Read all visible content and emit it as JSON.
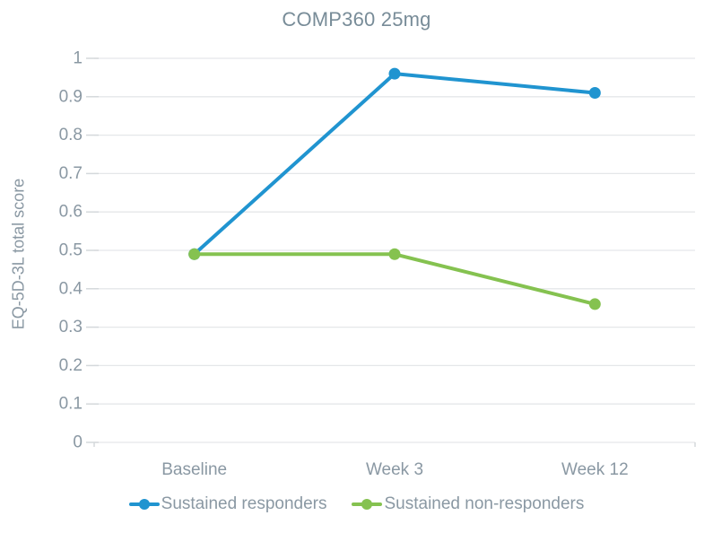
{
  "chart_data": {
    "type": "line",
    "title": "COMP360 25mg",
    "ylabel": "EQ-5D-3L total score",
    "xlabel": "",
    "categories": [
      "Baseline",
      "Week 3",
      "Week 12"
    ],
    "series": [
      {
        "name": "Sustained responders",
        "color": "#2094d0",
        "values": [
          0.49,
          0.96,
          0.91
        ]
      },
      {
        "name": "Sustained non-responders",
        "color": "#85c250",
        "values": [
          0.49,
          0.49,
          0.36
        ]
      }
    ],
    "ylim": [
      0,
      1
    ],
    "ytick_step": 0.1,
    "grid": true,
    "legend_position": "bottom",
    "gridline_color": "#e5e7e9",
    "tick_color": "#d4d8db",
    "text_color": "#8a98a3",
    "title_color": "#788c98"
  }
}
